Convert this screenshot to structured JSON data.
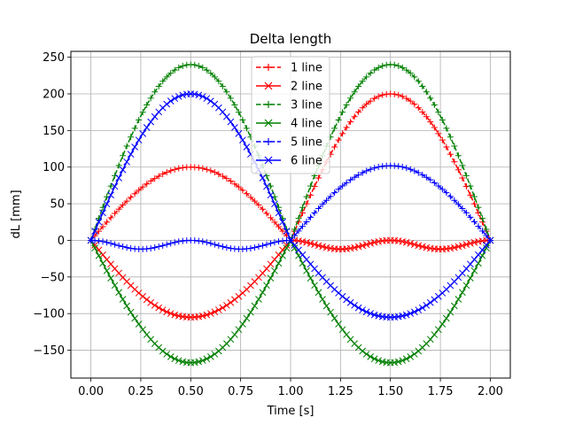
{
  "chart_data": {
    "type": "line",
    "title": "Delta length",
    "xlabel": "Time [s]",
    "ylabel": "dL [mm]",
    "xlim": [
      -0.1,
      2.1
    ],
    "ylim": [
      -188,
      258
    ],
    "xticks": [
      0.0,
      0.25,
      0.5,
      0.75,
      1.0,
      1.25,
      1.5,
      1.75,
      2.0
    ],
    "xtick_labels": [
      "0.00",
      "0.25",
      "0.50",
      "0.75",
      "1.00",
      "1.25",
      "1.50",
      "1.75",
      "2.00"
    ],
    "yticks": [
      -150,
      -100,
      -50,
      0,
      50,
      100,
      150,
      200,
      250
    ],
    "ytick_labels": [
      "−150",
      "−100",
      "−50",
      "0",
      "50",
      "100",
      "150",
      "200",
      "250"
    ],
    "grid": true,
    "legend_position": "top-center",
    "x_range": [
      0,
      2
    ],
    "num_points": 101,
    "series": [
      {
        "name": "1 line",
        "color": "#ff0000",
        "linestyle": "dashed",
        "marker": "plus",
        "curve": "piecewise",
        "peak_first": 100,
        "peak_second": 200,
        "sign_first": 1,
        "sign_second": 1
      },
      {
        "name": "2 line",
        "color": "#ff0000",
        "linestyle": "solid",
        "marker": "x",
        "curve": "piecewise",
        "peak_first": -105,
        "peak_second": -12,
        "sign_first": 1,
        "sign_second": 1,
        "dip_second": true
      },
      {
        "name": "3 line",
        "color": "#008000",
        "linestyle": "dashed",
        "marker": "plus",
        "curve": "piecewise",
        "peak_first": 240,
        "peak_second": 240
      },
      {
        "name": "4 line",
        "color": "#008000",
        "linestyle": "solid",
        "marker": "x",
        "curve": "piecewise",
        "peak_first": -167,
        "peak_second": -167
      },
      {
        "name": "5 line",
        "color": "#0000ff",
        "linestyle": "dashed",
        "marker": "plus",
        "curve": "piecewise",
        "peak_first": -12,
        "peak_second": 102,
        "dip_first": true
      },
      {
        "name": "6 line",
        "color": "#0000ff",
        "linestyle": "solid",
        "marker": "x",
        "curve": "piecewise",
        "peak_first": 200,
        "peak_second": -105
      }
    ]
  }
}
